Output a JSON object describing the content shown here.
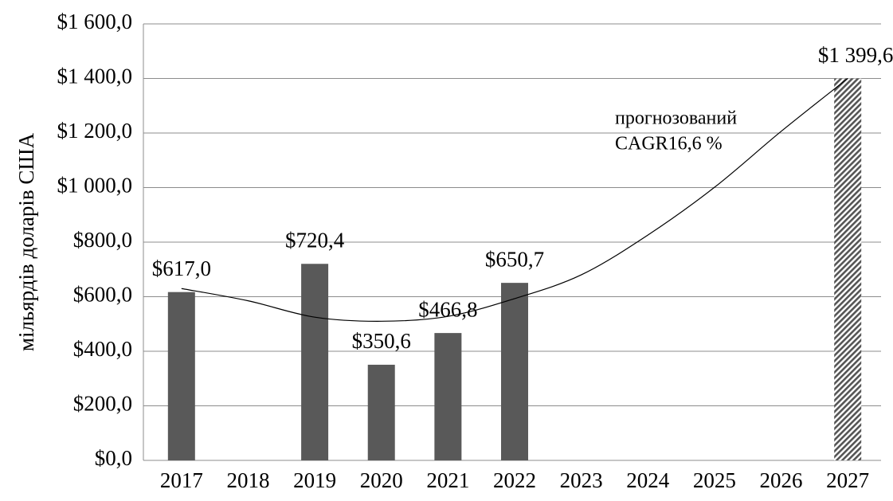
{
  "chart_data": {
    "type": "bar",
    "y_label": "мільярдів доларів США",
    "categories": [
      "2017",
      "2018",
      "2019",
      "2020",
      "2021",
      "2022",
      "2023",
      "2024",
      "2025",
      "2026",
      "2027"
    ],
    "values": [
      617.0,
      null,
      720.4,
      350.6,
      466.8,
      650.7,
      null,
      null,
      null,
      null,
      1399.6
    ],
    "value_labels": [
      "$617,0",
      null,
      "$720,4",
      "$350,6",
      "$466,8",
      "$650,7",
      null,
      null,
      null,
      null,
      "$1 399,6"
    ],
    "hatch": [
      false,
      false,
      false,
      false,
      false,
      false,
      false,
      false,
      false,
      false,
      true
    ],
    "color": "#595959",
    "trend_values": [
      630,
      585,
      525,
      510,
      528,
      593,
      680,
      826,
      1001,
      1206,
      1400
    ],
    "annotation": [
      "прогнозований",
      "CAGR16,6 %"
    ],
    "ylim": [
      0,
      1600
    ],
    "yticks": [
      {
        "value": 0,
        "label": "$0,0"
      },
      {
        "value": 200,
        "label": "$200,0"
      },
      {
        "value": 400,
        "label": "$400,0"
      },
      {
        "value": 600,
        "label": "$600,0"
      },
      {
        "value": 800,
        "label": "$800,0"
      },
      {
        "value": 1000,
        "label": "$1 000,0"
      },
      {
        "value": 1200,
        "label": "$1 200,0"
      },
      {
        "value": 1400,
        "label": "$1 400,0"
      },
      {
        "value": 1600,
        "label": "$1 600,0"
      }
    ],
    "grid": true
  }
}
